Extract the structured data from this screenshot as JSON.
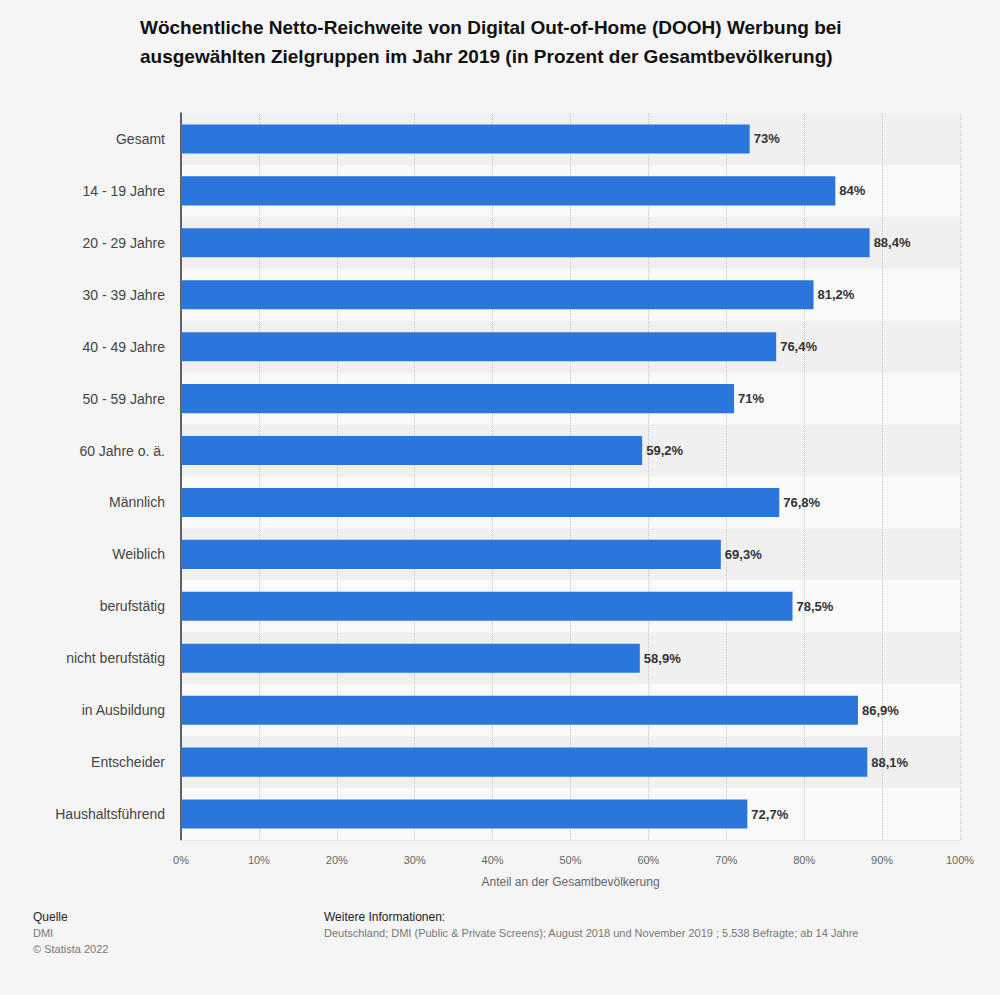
{
  "chart_data": {
    "type": "bar",
    "orientation": "horizontal",
    "title": "Wöchentliche Netto-Reichweite von Digital Out-of-Home (DOOH) Werbung bei ausgewählten Zielgruppen im Jahr 2019 (in Prozent der Gesamtbevölkerung)",
    "x_label": "Anteil an der Gesamtbevölkerung",
    "categories": [
      "Gesamt",
      "14 - 19 Jahre",
      "20 - 29 Jahre",
      "30 - 39 Jahre",
      "40 - 49 Jahre",
      "50 - 59 Jahre",
      "60 Jahre o. ä.",
      "Männlich",
      "Weiblich",
      "berufstätig",
      "nicht berufstätig",
      "in Ausbildung",
      "Entscheider",
      "Haushaltsführend"
    ],
    "values": [
      73,
      84,
      88.4,
      81.2,
      76.4,
      71,
      59.2,
      76.8,
      69.3,
      78.5,
      58.9,
      86.9,
      88.1,
      72.7
    ],
    "value_labels": [
      "73%",
      "84%",
      "88,4%",
      "81,2%",
      "76,4%",
      "71%",
      "59,2%",
      "76,8%",
      "69,3%",
      "78,5%",
      "58,9%",
      "86,9%",
      "88,1%",
      "72,7%"
    ],
    "color": "#2a76dd",
    "xlim": [
      0,
      100
    ],
    "xticks": [
      {
        "value": 0,
        "label": "0%"
      },
      {
        "value": 10,
        "label": "10%"
      },
      {
        "value": 20,
        "label": "20%"
      },
      {
        "value": 30,
        "label": "30%"
      },
      {
        "value": 40,
        "label": "40%"
      },
      {
        "value": 50,
        "label": "50%"
      },
      {
        "value": 60,
        "label": "60%"
      },
      {
        "value": 70,
        "label": "70%"
      },
      {
        "value": 80,
        "label": "80%"
      },
      {
        "value": 90,
        "label": "90%"
      },
      {
        "value": 100,
        "label": "100%"
      }
    ],
    "grid": true,
    "data_labels": true,
    "annotations": {
      "source_label": "Quelle",
      "source": "DMI",
      "copyright": "© Statista 2022",
      "info_label": "Weitere Informationen:",
      "info": "Deutschland; DMI (Public & Private Screens); August 2018 und November 2019 ; 5.538 Befragte; ab 14 Jahre"
    }
  }
}
